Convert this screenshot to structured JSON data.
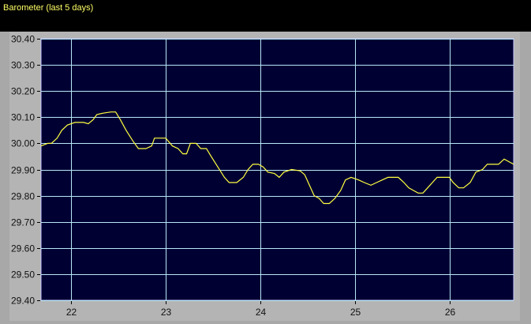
{
  "title": "Barometer (last 5 days)",
  "colors": {
    "background": "#000000",
    "plot_bg": "#000033",
    "grid": "#b8e8f8",
    "line": "#ffff40",
    "frame": "#a8a8a8",
    "title": "#ffff66"
  },
  "chart_data": {
    "type": "line",
    "title": "Barometer (last 5 days)",
    "xlim": [
      21.68,
      26.68
    ],
    "ylim": [
      29.4,
      30.4
    ],
    "grid": true,
    "x_ticks": [
      22,
      23,
      24,
      25,
      26
    ],
    "x_tick_labels": [
      "22",
      "23",
      "24",
      "25",
      "26"
    ],
    "y_ticks": [
      29.4,
      29.5,
      29.6,
      29.7,
      29.8,
      29.9,
      30.0,
      30.1,
      30.2,
      30.3,
      30.4
    ],
    "y_tick_labels": [
      "29.40",
      "29.50",
      "29.60",
      "29.70",
      "29.80",
      "29.90",
      "30.00",
      "30.10",
      "30.20",
      "30.30",
      "30.40"
    ],
    "series": [
      {
        "x": [
          21.68,
          21.75,
          21.79,
          21.85,
          21.9,
          21.96,
          22.04,
          22.13,
          22.18,
          22.23,
          22.27,
          22.33,
          22.42,
          22.47,
          22.52,
          22.58,
          22.65,
          22.71,
          22.79,
          22.85,
          22.88,
          22.93,
          23.0,
          23.07,
          23.13,
          23.18,
          23.22,
          23.26,
          23.32,
          23.37,
          23.43,
          23.48,
          23.55,
          23.62,
          23.67,
          23.75,
          23.82,
          23.87,
          23.92,
          23.98,
          24.03,
          24.08,
          24.15,
          24.2,
          24.25,
          24.33,
          24.42,
          24.47,
          24.52,
          24.57,
          24.62,
          24.67,
          24.73,
          24.79,
          24.85,
          24.9,
          24.96,
          25.04,
          25.1,
          25.17,
          25.23,
          25.29,
          25.35,
          25.42,
          25.46,
          25.52,
          25.57,
          25.62,
          25.67,
          25.72,
          25.77,
          25.82,
          25.87,
          25.93,
          26.0,
          26.04,
          26.1,
          26.15,
          26.22,
          26.28,
          26.35,
          26.4,
          26.46,
          26.52,
          26.58,
          26.63,
          26.68
        ],
        "y": [
          29.99,
          30.0,
          30.0,
          30.02,
          30.05,
          30.07,
          30.08,
          30.08,
          30.075,
          30.09,
          30.11,
          30.115,
          30.12,
          30.12,
          30.09,
          30.05,
          30.01,
          29.98,
          29.98,
          29.99,
          30.02,
          30.02,
          30.02,
          29.99,
          29.98,
          29.96,
          29.96,
          30.0,
          30.0,
          29.98,
          29.98,
          29.95,
          29.91,
          29.87,
          29.85,
          29.85,
          29.87,
          29.9,
          29.92,
          29.92,
          29.91,
          29.89,
          29.885,
          29.87,
          29.89,
          29.9,
          29.895,
          29.88,
          29.84,
          29.8,
          29.79,
          29.77,
          29.77,
          29.79,
          29.82,
          29.86,
          29.87,
          29.86,
          29.85,
          29.84,
          29.85,
          29.86,
          29.87,
          29.87,
          29.87,
          29.85,
          29.83,
          29.82,
          29.81,
          29.81,
          29.83,
          29.85,
          29.87,
          29.87,
          29.87,
          29.85,
          29.83,
          29.83,
          29.85,
          29.89,
          29.9,
          29.92,
          29.92,
          29.92,
          29.94,
          29.93,
          29.92
        ]
      }
    ]
  }
}
